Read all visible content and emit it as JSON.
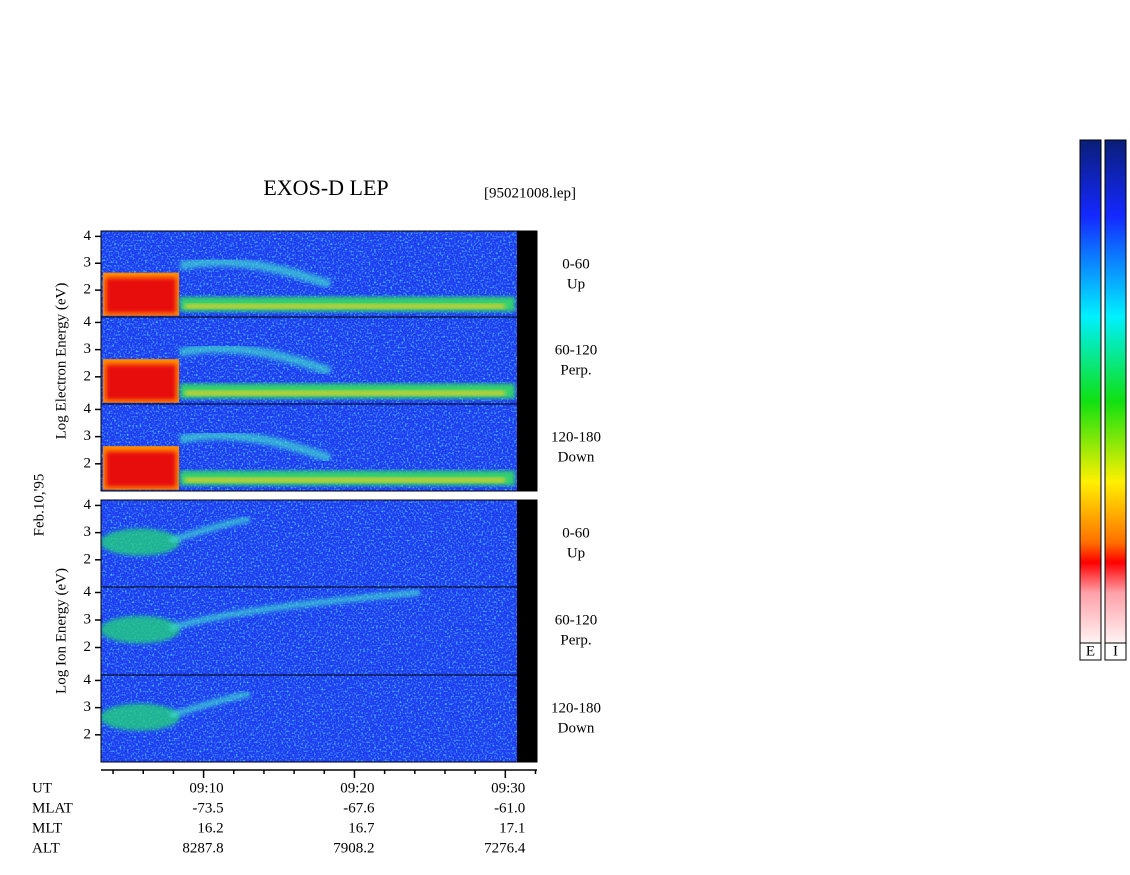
{
  "title": "EXOS-D LEP",
  "file": "[95021008.lep]",
  "date": "Feb.10,'95",
  "ylim": [
    1,
    4.2
  ],
  "yticks": [
    2,
    3,
    4
  ],
  "groups": [
    {
      "ylabel": "Log Electron Energy (eV)",
      "panels": [
        {
          "range": "0-60",
          "direction": "Up"
        },
        {
          "range": "60-120",
          "direction": "Perp."
        },
        {
          "range": "120-180",
          "direction": "Down"
        }
      ]
    },
    {
      "ylabel": "Log Ion Energy (eV)",
      "panels": [
        {
          "range": "0-60",
          "direction": "Up"
        },
        {
          "range": "60-120",
          "direction": "Perp."
        },
        {
          "range": "120-180",
          "direction": "Down"
        }
      ]
    }
  ],
  "xlim": [
    543.2,
    572.1
  ],
  "xticks": [
    {
      "value": 550,
      "label": "09:10"
    },
    {
      "value": 560,
      "label": "09:20"
    },
    {
      "value": 570,
      "label": "09:30"
    }
  ],
  "minor_xticks": [
    544,
    546,
    548,
    552,
    554,
    556,
    558,
    562,
    564,
    566,
    568,
    572
  ],
  "ephemeris": {
    "labels": [
      "UT",
      "MLAT",
      "MLT",
      "ALT"
    ],
    "rows": [
      [
        "-73.5",
        "-67.6",
        "-61.0"
      ],
      [
        "16.2",
        "16.7",
        "17.1"
      ],
      [
        "8287.8",
        "7908.2",
        "7276.4"
      ]
    ]
  },
  "colorbars": [
    "E",
    "I"
  ]
}
